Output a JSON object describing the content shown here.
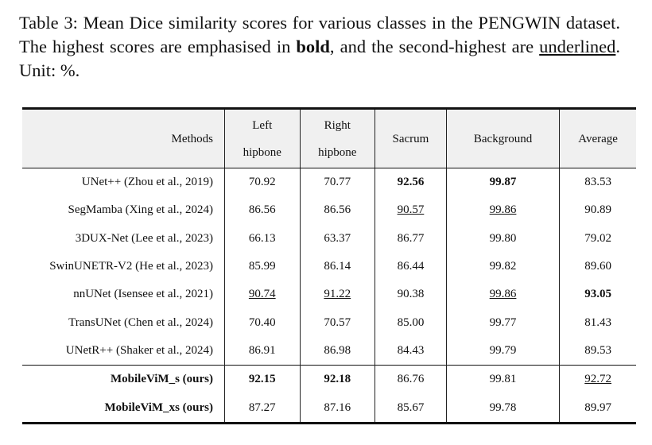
{
  "caption": {
    "parts": [
      "Table 3:  Mean Dice similarity scores for various classes in the PENGWIN dataset. The highest scores are emphasised in ",
      "bold",
      ", and the second-highest are ",
      "underlined",
      ". Unit: %."
    ],
    "emph": [
      null,
      "bold",
      null,
      "underline",
      null
    ]
  },
  "table": {
    "header": [
      [
        "Methods"
      ],
      [
        "Left",
        "hipbone"
      ],
      [
        "Right",
        "hipbone"
      ],
      [
        "Sacrum"
      ],
      [
        "Background"
      ],
      [
        "Average"
      ]
    ],
    "groups": [
      {
        "bold_method": false,
        "rows": [
          [
            {
              "text": "UNet++ (Zhou et al., 2019)"
            },
            {
              "text": "70.92"
            },
            {
              "text": "70.77"
            },
            {
              "text": "92.56",
              "emph": "bold"
            },
            {
              "text": "99.87",
              "emph": "bold"
            },
            {
              "text": "83.53"
            }
          ],
          [
            {
              "text": "SegMamba (Xing et al., 2024)"
            },
            {
              "text": "86.56"
            },
            {
              "text": "86.56"
            },
            {
              "text": "90.57",
              "emph": "underline"
            },
            {
              "text": "99.86",
              "emph": "underline"
            },
            {
              "text": "90.89"
            }
          ],
          [
            {
              "text": "3DUX-Net (Lee et al., 2023)"
            },
            {
              "text": "66.13"
            },
            {
              "text": "63.37"
            },
            {
              "text": "86.77"
            },
            {
              "text": "99.80"
            },
            {
              "text": "79.02"
            }
          ],
          [
            {
              "text": "SwinUNETR-V2 (He et al., 2023)"
            },
            {
              "text": "85.99"
            },
            {
              "text": "86.14"
            },
            {
              "text": "86.44"
            },
            {
              "text": "99.82"
            },
            {
              "text": "89.60"
            }
          ],
          [
            {
              "text": "nnUNet (Isensee et al., 2021)"
            },
            {
              "text": "90.74",
              "emph": "underline"
            },
            {
              "text": "91.22",
              "emph": "underline"
            },
            {
              "text": "90.38"
            },
            {
              "text": "99.86",
              "emph": "underline"
            },
            {
              "text": "93.05",
              "emph": "bold"
            }
          ],
          [
            {
              "text": "TransUNet (Chen et al., 2024)"
            },
            {
              "text": "70.40"
            },
            {
              "text": "70.57"
            },
            {
              "text": "85.00"
            },
            {
              "text": "99.77"
            },
            {
              "text": "81.43"
            }
          ],
          [
            {
              "text": "UNetR++ (Shaker et al., 2024)"
            },
            {
              "text": "86.91"
            },
            {
              "text": "86.98"
            },
            {
              "text": "84.43"
            },
            {
              "text": "99.79"
            },
            {
              "text": "89.53"
            }
          ]
        ]
      },
      {
        "bold_method": true,
        "rows": [
          [
            {
              "text": "MobileViM_s (ours)"
            },
            {
              "text": "92.15",
              "emph": "bold"
            },
            {
              "text": "92.18",
              "emph": "bold"
            },
            {
              "text": "86.76"
            },
            {
              "text": "99.81"
            },
            {
              "text": "92.72",
              "emph": "underline"
            }
          ],
          [
            {
              "text": "MobileViM_xs (ours)"
            },
            {
              "text": "87.27"
            },
            {
              "text": "87.16"
            },
            {
              "text": "85.67"
            },
            {
              "text": "99.78"
            },
            {
              "text": "89.97"
            }
          ]
        ]
      }
    ]
  }
}
